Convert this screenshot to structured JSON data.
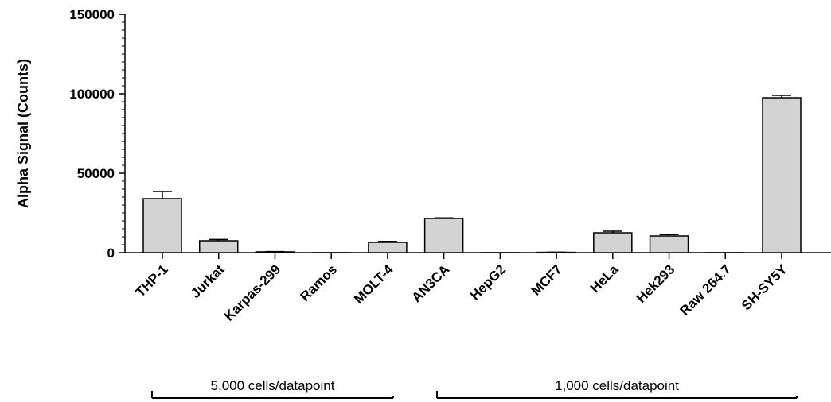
{
  "chart_data": {
    "type": "bar",
    "categories": [
      "THP-1",
      "Jurkat",
      "Karpas-299",
      "Ramos",
      "MOLT-4",
      "AN3CA",
      "HepG2",
      "MCF7",
      "HeLa",
      "Hek293",
      "Raw 264.7",
      "SH-SY5Y"
    ],
    "values": [
      34000,
      7500,
      500,
      0,
      6500,
      21500,
      0,
      200,
      12500,
      10500,
      0,
      97500
    ],
    "errors": [
      4500,
      800,
      200,
      0,
      600,
      400,
      0,
      100,
      1000,
      900,
      0,
      1500
    ],
    "ylabel": "Alpha Signal (Counts)",
    "xlabel": "",
    "ylim": [
      0,
      150000
    ],
    "yticks": [
      "0",
      "50000",
      "100000",
      "150000"
    ],
    "bar_color": "#d3d3d3",
    "grid": false,
    "groups": [
      {
        "label": "5,000 cells/datapoint",
        "first": "THP-1",
        "last": "MOLT-4"
      },
      {
        "label": "1,000 cells/datapoint",
        "first": "AN3CA",
        "last": "SH-SY5Y"
      }
    ]
  }
}
